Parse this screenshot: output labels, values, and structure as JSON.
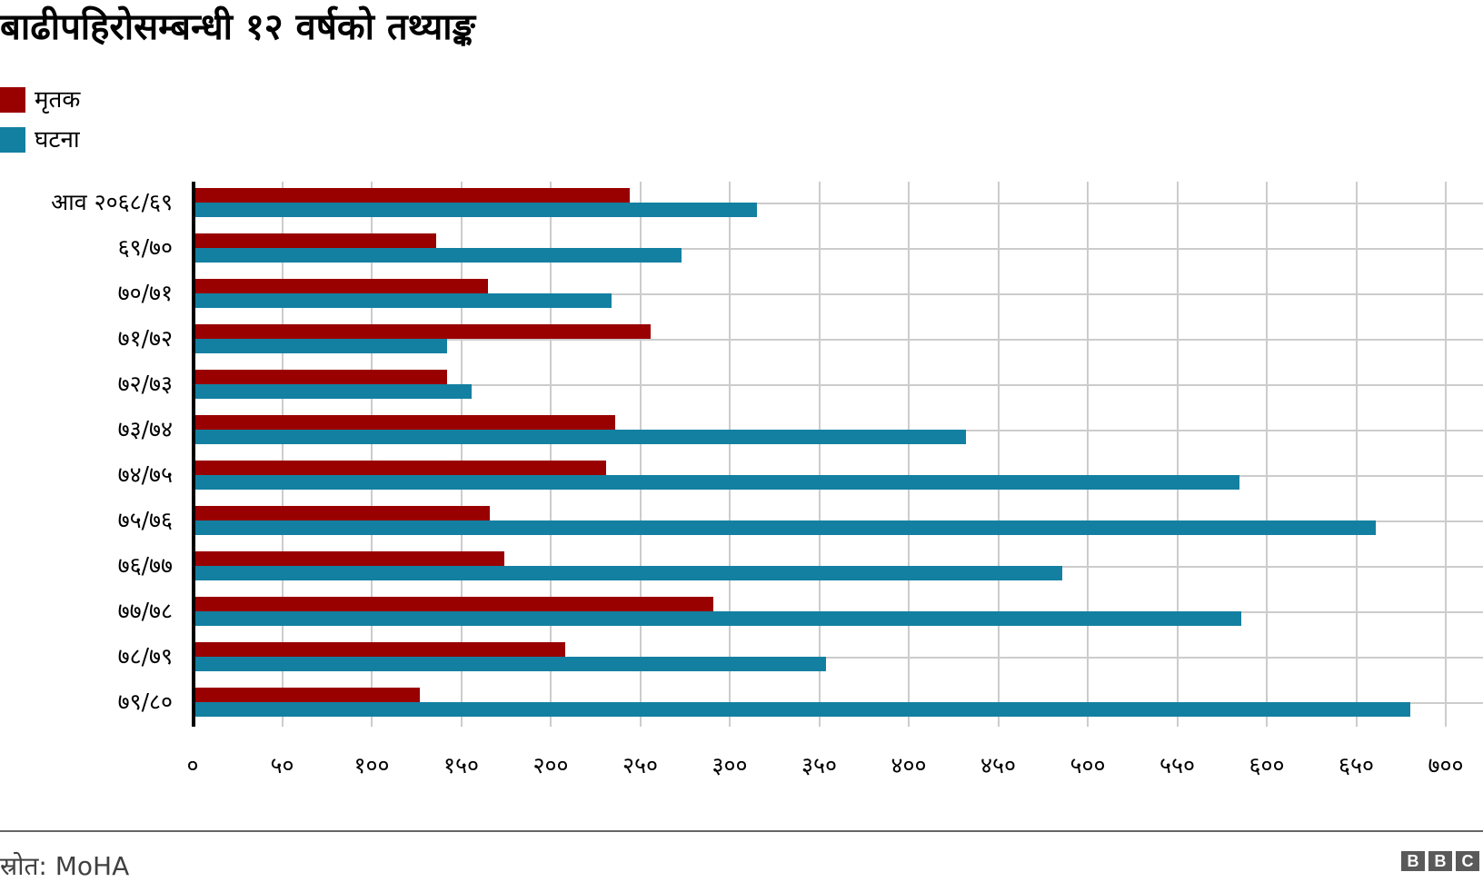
{
  "title": "बाढीपहिरोसम्बन्धी १२ वर्षको तथ्याङ्क",
  "legend": [
    {
      "label": "मृतक",
      "color": "#990000"
    },
    {
      "label": "घटना",
      "color": "#1380A1"
    }
  ],
  "y_labels": [
    "आव २०६८/६९",
    "६९/७०",
    "७०/७१",
    "७१/७२",
    "७२/७३",
    "७३/७४",
    "७४/७५",
    "७५/७६",
    "७६/७७",
    "७७/७८",
    "७८/७९",
    "७९/८०"
  ],
  "x_ticks": [
    "०",
    "५०",
    "१००",
    "१५०",
    "२००",
    "२५०",
    "३००",
    "३५०",
    "४००",
    "४५०",
    "५००",
    "५५०",
    "६००",
    "६५०",
    "७००"
  ],
  "footer": {
    "source": "स्रोत:  MoHA",
    "logo": [
      "B",
      "B",
      "C"
    ]
  },
  "chart_data": {
    "type": "bar",
    "orientation": "horizontal",
    "title": "बाढीपहिरोसम्बन्धी १२ वर्षको तथ्याङ्क",
    "categories": [
      "आव २०६८/६९",
      "६९/७०",
      "७०/७१",
      "७१/७२",
      "७२/७३",
      "७३/७४",
      "७४/७५",
      "७५/७६",
      "७६/७७",
      "७७/७८",
      "७८/७९",
      "७९/८०"
    ],
    "series": [
      {
        "name": "मृतक",
        "color": "#990000",
        "values": [
          244,
          136,
          165,
          256,
          142,
          236,
          231,
          166,
          174,
          291,
          208,
          127
        ]
      },
      {
        "name": "घटना",
        "color": "#1380A1",
        "values": [
          315,
          273,
          234,
          142,
          156,
          432,
          585,
          661,
          486,
          586,
          354,
          680
        ]
      }
    ],
    "xlabel": "",
    "ylabel": "",
    "xlim": [
      0,
      700
    ],
    "x_tick_values": [
      0,
      50,
      100,
      150,
      200,
      250,
      300,
      350,
      400,
      450,
      500,
      550,
      600,
      650,
      700
    ],
    "grid": true,
    "legend_position": "top-left",
    "source": "MoHA"
  }
}
